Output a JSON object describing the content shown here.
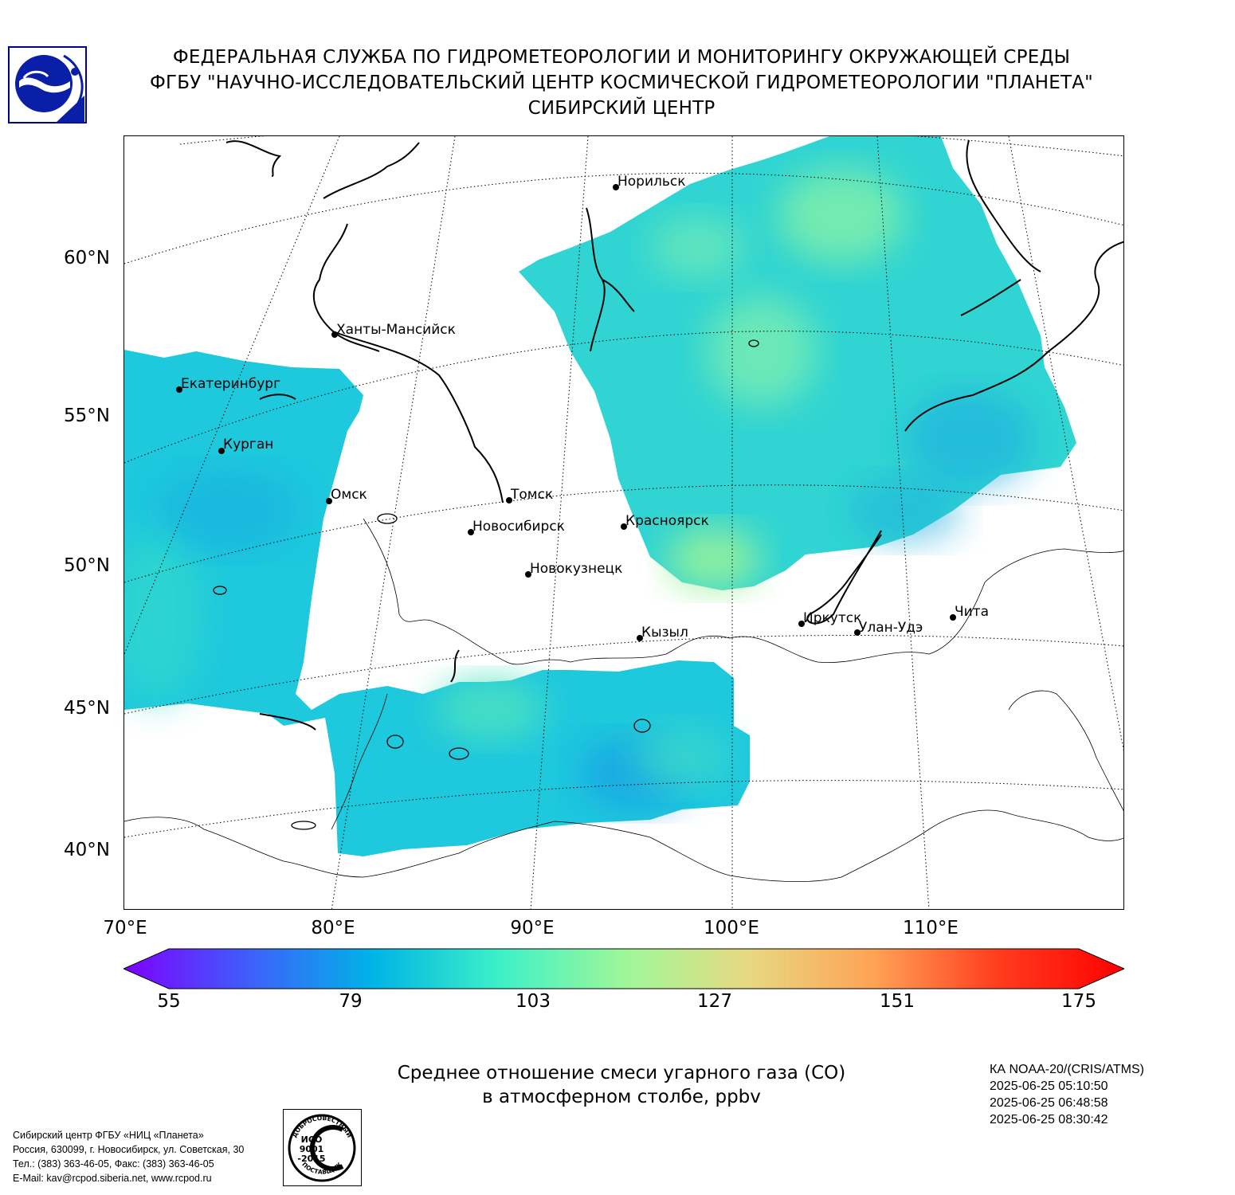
{
  "header": {
    "line1": "ФЕДЕРАЛЬНАЯ СЛУЖБА ПО ГИДРОМЕТЕОРОЛОГИИ И МОНИТОРИНГУ ОКРУЖАЮЩЕЙ СРЕДЫ",
    "line2": "ФГБУ \"НАУЧНО-ИССЛЕДОВАТЕЛЬСКИЙ ЦЕНТР КОСМИЧЕСКОЙ ГИДРОМЕТЕОРОЛОГИИ \"ПЛАНЕТА\"",
    "line3": "СИБИРСКИЙ ЦЕНТР"
  },
  "map": {
    "lat_labels": [
      "60°N",
      "55°N",
      "50°N",
      "45°N",
      "40°N"
    ],
    "lon_labels": [
      "70°E",
      "80°E",
      "90°E",
      "100°E",
      "110°E"
    ],
    "cities": [
      {
        "name": "Норильск"
      },
      {
        "name": "Ханты-Мансийск"
      },
      {
        "name": "Екатеринбург"
      },
      {
        "name": "Курган"
      },
      {
        "name": "Омск"
      },
      {
        "name": "Томск"
      },
      {
        "name": "Новосибирск"
      },
      {
        "name": "Красноярск"
      },
      {
        "name": "Новокузнецк"
      },
      {
        "name": "Кызыл"
      },
      {
        "name": "Иркутск"
      },
      {
        "name": "Улан-Удэ"
      },
      {
        "name": "Чита"
      }
    ]
  },
  "colorbar": {
    "ticks": [
      "55",
      "79",
      "103",
      "127",
      "151",
      "175"
    ],
    "min": 55,
    "max": 175,
    "colors": [
      "#7f00ff",
      "#3f5efb",
      "#00b4e6",
      "#3cf0c8",
      "#9ef79a",
      "#e6d880",
      "#ffa256",
      "#ff3c1e",
      "#ff0000"
    ]
  },
  "caption": {
    "line1": "Среднее отношение смеси угарного газа (CO)",
    "line2": "в атмосферном столбе, ppbv"
  },
  "satellite": {
    "name": "КА NOAA-20/(CRIS/ATMS)",
    "times": [
      "2025-06-25 05:10:50",
      "2025-06-25 06:48:58",
      "2025-06-25 08:30:42"
    ]
  },
  "footer": {
    "lines": [
      "Сибирский центр ФГБУ «НИЦ «Планета»",
      "Россия, 630099, г. Новосибирск, ул. Советская, 30",
      "Тел.: (383) 363-46-05, Факс: (383) 363-46-05",
      "E-Mail: kav@rcpod.siberia.net, www.rcpod.ru"
    ]
  },
  "iso_badge": {
    "top_text": "ДОБРОСОВЕСТНЫЙ",
    "center_lines": [
      "ИСО",
      "9001",
      "-2015"
    ],
    "bottom_text": "ПОСТАВЩИК"
  }
}
